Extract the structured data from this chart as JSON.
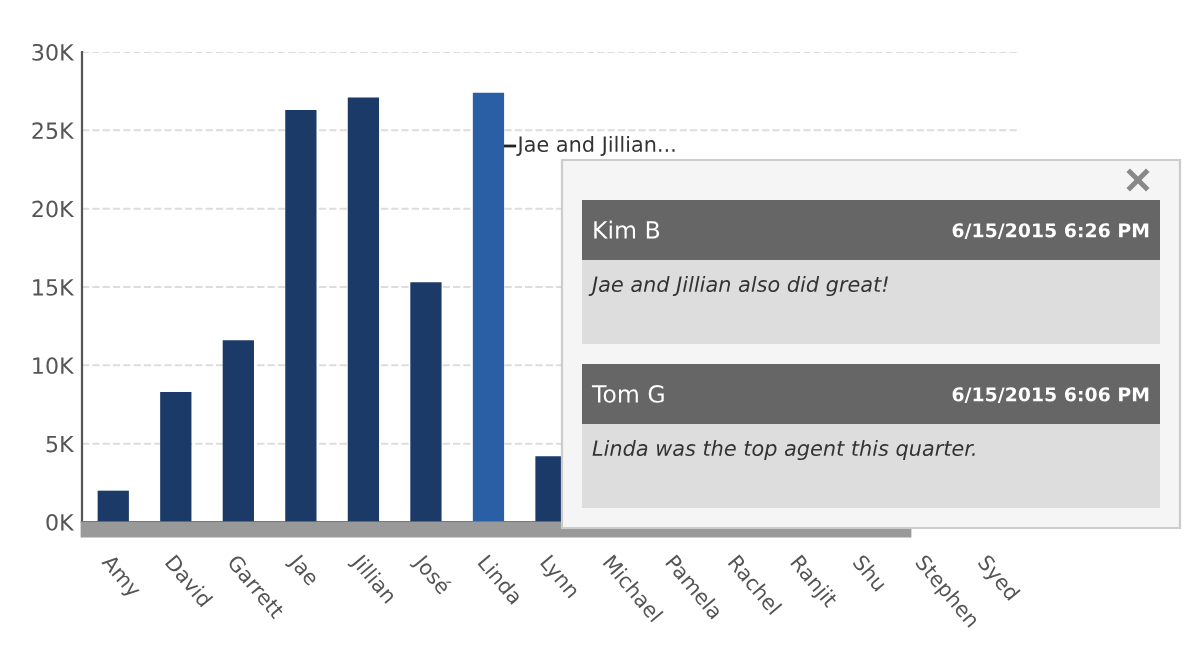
{
  "chart_data": {
    "type": "bar",
    "categories": [
      "Amy",
      "David",
      "Garrett",
      "Jae",
      "Jillian",
      "José",
      "Linda",
      "Lynn",
      "Michael",
      "Pamela",
      "Rachel",
      "Ranjit",
      "Shu",
      "Stephen",
      "Syed"
    ],
    "values": [
      2000,
      8300,
      11600,
      26300,
      27100,
      15300,
      27400,
      4200,
      null,
      null,
      null,
      null,
      null,
      null,
      null
    ],
    "colors": [
      "#1b3a68",
      "#1b3a68",
      "#1b3a68",
      "#1b3a68",
      "#1b3a68",
      "#1b3a68",
      "#2a5fa5",
      "#1b3a68",
      "#1b3a68",
      "#1b3a68",
      "#1b3a68",
      "#1b3a68",
      "#1b3a68",
      "#1b3a68",
      "#1b3a68"
    ],
    "ylim": [
      0,
      30000
    ],
    "yticks": [
      {
        "value": 0,
        "label": "0K"
      },
      {
        "value": 5000,
        "label": "5K"
      },
      {
        "value": 10000,
        "label": "10K"
      },
      {
        "value": 15000,
        "label": "15K"
      },
      {
        "value": 20000,
        "label": "20K"
      },
      {
        "value": 25000,
        "label": "25K"
      },
      {
        "value": 30000,
        "label": "30K"
      }
    ],
    "grid": "y",
    "annotations": [
      {
        "text": "Jae and Jillian...",
        "x": "Linda",
        "y": 24000
      },
      "Kim B",
      "6/15/2015 6:26 PM",
      "Jae and Jillian also did great!",
      "Tom G",
      "6/15/2015 6:06 PM",
      "Linda was the top agent this quarter."
    ]
  }
}
